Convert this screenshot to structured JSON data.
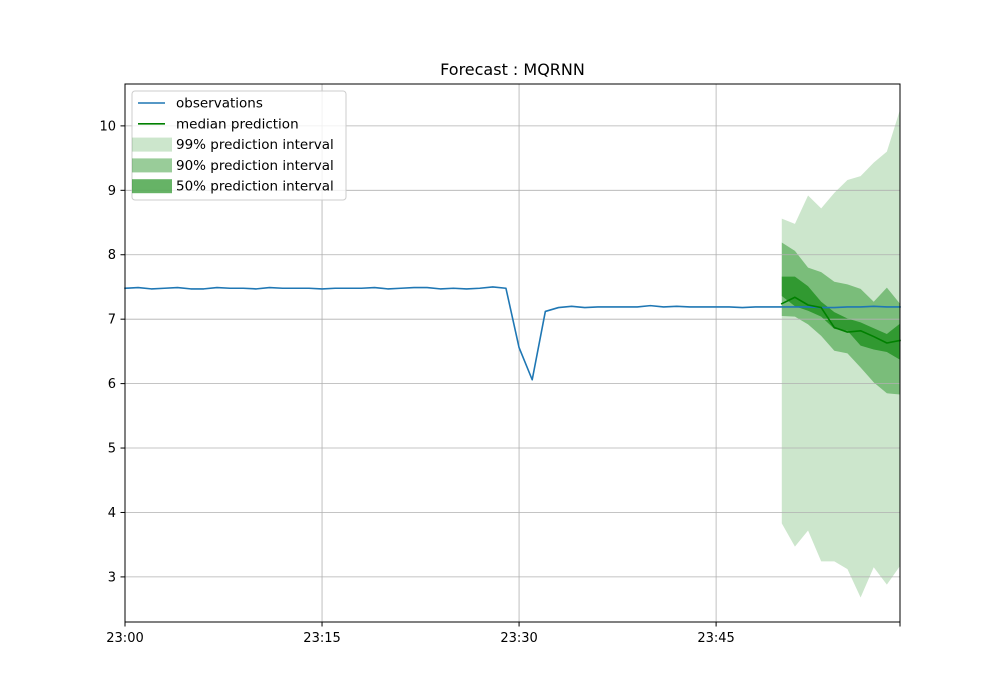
{
  "chart_data": {
    "type": "line",
    "title": "Forecast : MQRNN",
    "xlabel": "",
    "ylabel": "",
    "x_axis": {
      "unit": "minute-of-day",
      "start": "23:00",
      "range": [
        0,
        59
      ],
      "ticks": [
        0,
        15,
        30,
        45,
        59
      ],
      "tick_labels": [
        "23:00",
        "23:15",
        "23:30",
        "23:45",
        ""
      ]
    },
    "y_axis": {
      "range": [
        2.3,
        10.65
      ],
      "ticks": [
        3,
        4,
        5,
        6,
        7,
        8,
        9,
        10
      ],
      "tick_labels": [
        "3",
        "4",
        "5",
        "6",
        "7",
        "8",
        "9",
        "10"
      ]
    },
    "grid": true,
    "legend_position": "top-left",
    "legend": [
      "observations",
      "median prediction",
      "99% prediction interval",
      "90% prediction interval",
      "50% prediction interval"
    ],
    "series": [
      {
        "name": "observations",
        "color": "#1f77b4",
        "x": [
          0,
          1,
          2,
          3,
          4,
          5,
          6,
          7,
          8,
          9,
          10,
          11,
          12,
          13,
          14,
          15,
          16,
          17,
          18,
          19,
          20,
          21,
          22,
          23,
          24,
          25,
          26,
          27,
          28,
          29,
          30,
          31,
          32,
          33,
          34,
          35,
          36,
          37,
          38,
          39,
          40,
          41,
          42,
          43,
          44,
          45,
          46,
          47,
          48,
          49,
          50,
          51,
          52,
          53,
          54,
          55,
          56,
          57,
          58,
          59
        ],
        "y": [
          7.48,
          7.49,
          7.47,
          7.48,
          7.49,
          7.47,
          7.47,
          7.49,
          7.48,
          7.48,
          7.47,
          7.49,
          7.48,
          7.48,
          7.48,
          7.47,
          7.48,
          7.48,
          7.48,
          7.49,
          7.47,
          7.48,
          7.49,
          7.49,
          7.47,
          7.48,
          7.47,
          7.48,
          7.5,
          7.48,
          6.56,
          6.06,
          7.12,
          7.18,
          7.2,
          7.18,
          7.19,
          7.19,
          7.19,
          7.19,
          7.21,
          7.19,
          7.2,
          7.19,
          7.19,
          7.19,
          7.19,
          7.18,
          7.19,
          7.19,
          7.19,
          7.19,
          7.19,
          7.18,
          7.18,
          7.19,
          7.19,
          7.2,
          7.19,
          7.19
        ]
      },
      {
        "name": "median prediction",
        "color": "#008000",
        "x": [
          50,
          51,
          52,
          53,
          54,
          55,
          56,
          57,
          58,
          59
        ],
        "y": [
          7.24,
          7.34,
          7.22,
          7.18,
          6.87,
          6.8,
          6.82,
          6.73,
          6.63,
          6.67
        ]
      }
    ],
    "intervals": [
      {
        "name": "99% prediction interval",
        "color": "#008000",
        "opacity": 0.2,
        "x": [
          50,
          51,
          52,
          53,
          54,
          55,
          56,
          57,
          58,
          59
        ],
        "lower": [
          3.83,
          3.47,
          3.72,
          3.24,
          3.24,
          3.12,
          2.68,
          3.15,
          2.88,
          3.17
        ],
        "upper": [
          8.56,
          8.48,
          8.92,
          8.72,
          8.96,
          9.16,
          9.22,
          9.43,
          9.6,
          10.25
        ]
      },
      {
        "name": "90% prediction interval",
        "color": "#008000",
        "opacity": 0.4,
        "x": [
          50,
          51,
          52,
          53,
          54,
          55,
          56,
          57,
          58,
          59
        ],
        "lower": [
          7.05,
          7.04,
          6.92,
          6.74,
          6.51,
          6.47,
          6.25,
          6.02,
          5.85,
          5.83
        ],
        "upper": [
          8.19,
          8.06,
          7.8,
          7.73,
          7.58,
          7.54,
          7.47,
          7.27,
          7.49,
          7.24
        ]
      },
      {
        "name": "50% prediction interval",
        "color": "#008000",
        "opacity": 0.6,
        "x": [
          50,
          51,
          52,
          53,
          54,
          55,
          56,
          57,
          58,
          59
        ],
        "lower": [
          7.36,
          7.2,
          7.13,
          7.04,
          6.85,
          6.82,
          6.59,
          6.53,
          6.49,
          6.37
        ],
        "upper": [
          7.66,
          7.66,
          7.51,
          7.27,
          7.11,
          7.01,
          6.95,
          6.86,
          6.77,
          6.93
        ]
      }
    ]
  }
}
